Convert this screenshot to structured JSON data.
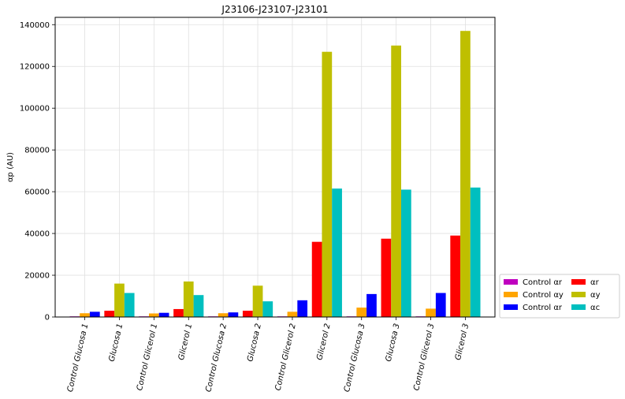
{
  "chart_data": {
    "type": "bar",
    "title": "J23106-J23107-J23101",
    "xlabel": "",
    "ylabel": "αp (AU)",
    "ylim": [
      0,
      143500
    ],
    "yticks": [
      0,
      20000,
      40000,
      60000,
      80000,
      100000,
      120000,
      140000
    ],
    "grid": true,
    "legend_position": "outside-bottom-right",
    "categories": [
      "Control Glucosa 1",
      "Glucosa 1",
      "Control Glicerol 1",
      "Glicerol 1",
      "Control Glucosa 2",
      "Glucosa 2",
      "Control Glicerol 2",
      "Glicerol 2",
      "Control Glucosa 3",
      "Glucosa 3",
      "Control Glicerol 3",
      "Glicerol 3"
    ],
    "series": [
      {
        "name": "Control αr",
        "color": "#bf00bf",
        "values": [
          300,
          null,
          300,
          null,
          300,
          null,
          300,
          null,
          300,
          null,
          300,
          null
        ]
      },
      {
        "name": "Control αy",
        "color": "#ffa500",
        "values": [
          1800,
          null,
          1700,
          null,
          1800,
          null,
          2500,
          null,
          4500,
          null,
          4000,
          null
        ]
      },
      {
        "name": "Control αr",
        "color": "#0000ff",
        "values": [
          2500,
          null,
          2000,
          null,
          2200,
          null,
          8000,
          null,
          11000,
          null,
          11500,
          null
        ]
      },
      {
        "name": "αr",
        "color": "#ff0000",
        "values": [
          null,
          3000,
          null,
          3800,
          null,
          3000,
          null,
          36000,
          null,
          37500,
          null,
          39000
        ]
      },
      {
        "name": "αy",
        "color": "#bfbf00",
        "values": [
          null,
          16000,
          null,
          17000,
          null,
          15000,
          null,
          127000,
          null,
          130000,
          null,
          137000
        ]
      },
      {
        "name": "αc",
        "color": "#00bfbf",
        "values": [
          null,
          11500,
          null,
          10500,
          null,
          7500,
          null,
          61500,
          null,
          61000,
          null,
          62000
        ]
      }
    ]
  }
}
